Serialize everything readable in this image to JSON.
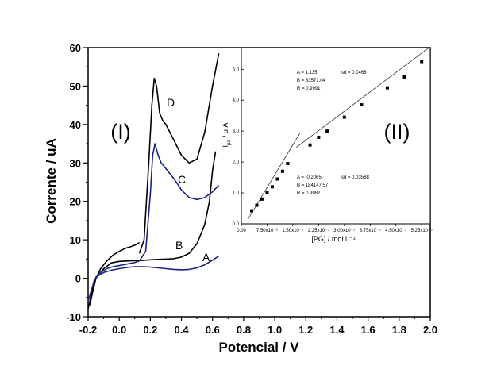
{
  "chart_data": [
    {
      "type": "line",
      "panel_label": "(I)",
      "xlabel": "Potencial / V",
      "ylabel": "Corrente / uA",
      "xlim": [
        -0.2,
        2.0
      ],
      "ylim": [
        -10,
        60
      ],
      "x_ticks": [
        "-0.2",
        "0.0",
        "0.2",
        "0.4",
        "0.6",
        "0.8",
        "1.0",
        "1.2",
        "1.4",
        "1.6",
        "1.8",
        "2.0"
      ],
      "y_ticks": [
        "-10",
        "0",
        "10",
        "20",
        "30",
        "40",
        "50",
        "60"
      ],
      "series": [
        {
          "name": "A",
          "color": "#1a237e",
          "x": [
            -0.19,
            -0.15,
            -0.1,
            -0.05,
            0.0,
            0.05,
            0.1,
            0.15,
            0.2,
            0.25,
            0.3,
            0.35,
            0.4,
            0.45,
            0.5,
            0.55,
            0.6,
            0.64
          ],
          "y": [
            -5.0,
            0.3,
            1.5,
            2.1,
            2.5,
            2.8,
            3.0,
            3.0,
            2.9,
            2.7,
            2.5,
            2.3,
            2.2,
            2.3,
            2.7,
            3.5,
            4.7,
            5.8
          ]
        },
        {
          "name": "B",
          "color": "#000000",
          "x": [
            -0.19,
            -0.15,
            -0.1,
            -0.05,
            0.0,
            0.05,
            0.1,
            0.13,
            0.17,
            0.2,
            0.25,
            0.3,
            0.35,
            0.4,
            0.45,
            0.5,
            0.55,
            0.58,
            0.6,
            0.62
          ],
          "y": [
            -7.0,
            0.0,
            2.5,
            4.0,
            4.4,
            4.5,
            4.6,
            4.6,
            4.7,
            4.8,
            4.9,
            5.0,
            5.1,
            5.5,
            6.5,
            9.0,
            14.0,
            20.0,
            28.0,
            33.0
          ]
        },
        {
          "name": "C",
          "color": "#1a237e",
          "x": [
            0.13,
            0.17,
            0.2,
            0.215,
            0.23,
            0.25,
            0.27,
            0.3,
            0.35,
            0.4,
            0.45,
            0.5,
            0.55,
            0.6,
            0.64
          ],
          "y": [
            4.5,
            7.0,
            22.0,
            32.0,
            35.0,
            32.0,
            30.0,
            28.5,
            26.0,
            23.0,
            21.0,
            20.5,
            21.0,
            22.5,
            24.2
          ]
        },
        {
          "name": "D",
          "color": "#000000",
          "x": [
            0.13,
            0.16,
            0.19,
            0.21,
            0.225,
            0.24,
            0.26,
            0.28,
            0.3,
            0.35,
            0.4,
            0.45,
            0.5,
            0.55,
            0.6,
            0.64
          ],
          "y": [
            6.5,
            10.0,
            30.0,
            45.0,
            52.0,
            50.0,
            43.0,
            41.0,
            40.0,
            36.0,
            32.0,
            30.0,
            31.0,
            38.0,
            50.0,
            58.5
          ]
        },
        {
          "name": "",
          "color": "#000000",
          "x": [
            -0.2,
            -0.16,
            -0.12,
            -0.08,
            -0.04,
            0.0,
            0.04,
            0.08,
            0.11,
            0.13
          ],
          "y": [
            -8.0,
            -1.0,
            2.5,
            4.5,
            6.0,
            7.0,
            7.8,
            8.3,
            8.8,
            9.3
          ]
        },
        {
          "name": "",
          "color": "#1a237e",
          "x": [
            -0.2,
            -0.16,
            -0.12,
            -0.08,
            -0.04,
            0.0,
            0.05,
            0.1,
            0.13
          ],
          "y": [
            -6.0,
            -0.5,
            1.5,
            2.5,
            3.0,
            3.3,
            3.7,
            4.1,
            4.5
          ]
        }
      ]
    },
    {
      "type": "scatter",
      "panel_label": "(II)",
      "xlabel": "[PG] / mol L⁻¹",
      "ylabel": "I",
      "ylabel_sub": "pa",
      "ylabel_unit": "/ μ A",
      "xlim": [
        0.0,
        5.5
      ],
      "ylim": [
        0.0,
        5.7
      ],
      "x_ticks": [
        "0.00",
        "7.50x10⁻⁶",
        "1.50x10⁻⁵",
        "2.25x10⁻⁵",
        "3.00x10⁻⁵",
        "3.75x10⁻⁵",
        "4.50x10⁻⁵",
        "5.25x10⁻⁵"
      ],
      "x_tick_values": [
        0.0,
        0.75,
        1.5,
        2.25,
        3.0,
        3.75,
        4.5,
        5.25
      ],
      "y_ticks": [
        "0.0",
        "1.0",
        "2.0",
        "3.0",
        "4.0",
        "5.0"
      ],
      "x_scale_note": "x in units of 1e-5 mol/L",
      "points": {
        "x": [
          0.3,
          0.45,
          0.6,
          0.75,
          0.9,
          1.05,
          1.2,
          1.35,
          2.0,
          2.25,
          2.5,
          3.0,
          3.5,
          4.25,
          4.75,
          5.25
        ],
        "y": [
          0.42,
          0.6,
          0.8,
          1.0,
          1.2,
          1.45,
          1.7,
          1.95,
          2.55,
          2.8,
          3.0,
          3.45,
          3.85,
          4.4,
          4.75,
          5.25
        ]
      },
      "fits": [
        {
          "A": "A = -0.2065",
          "sd": "sd = 0.03588",
          "B": "B = 184147.57",
          "R": "R = 0.9982",
          "x_range": [
            0.2,
            1.7
          ]
        },
        {
          "A": "A = 1.135",
          "sd": "sd = 0.0468",
          "B": "B = 83571.04",
          "R": "R = 0.9991",
          "x_range": [
            1.6,
            5.45
          ]
        }
      ]
    }
  ]
}
